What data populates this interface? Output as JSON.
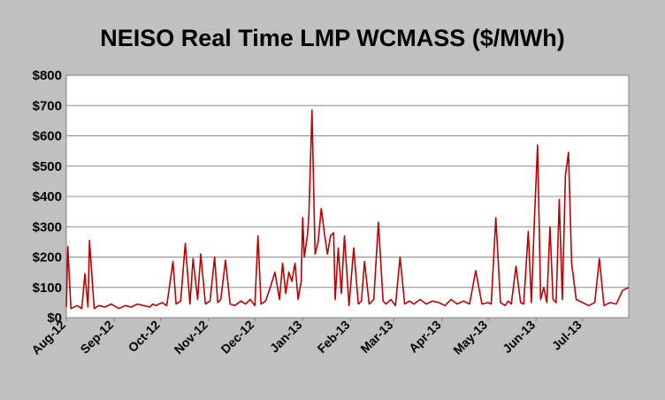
{
  "chart_data": {
    "type": "line",
    "title": "NEISO Real Time LMP WCMASS ($/MWh)",
    "xlabel": "",
    "ylabel": "",
    "ylim": [
      0,
      800
    ],
    "yticks": [
      0,
      100,
      200,
      300,
      400,
      500,
      600,
      700,
      800
    ],
    "ytick_labels": [
      "$0",
      "$100",
      "$200",
      "$300",
      "$400",
      "$500",
      "$600",
      "$700",
      "$800"
    ],
    "x_tick_labels": [
      "Aug-12",
      "Sep-12",
      "Oct-12",
      "Nov-12",
      "Dec-12",
      "Jan-13",
      "Feb-13",
      "Mar-13",
      "Apr-13",
      "May-13",
      "Jun-13",
      "Jul-13"
    ],
    "x_tick_dates": [
      "2012-08-01",
      "2012-09-01",
      "2012-10-01",
      "2012-11-01",
      "2012-12-01",
      "2013-01-01",
      "2013-02-01",
      "2013-03-01",
      "2013-04-01",
      "2013-05-01",
      "2013-06-01",
      "2013-07-01"
    ],
    "xlim": [
      "2012-08-01",
      "2013-07-31"
    ],
    "grid": "horizontal",
    "legend": "none",
    "line_color": "#c00000",
    "series": [
      {
        "x": [
          "2012-08-01",
          "2012-08-02",
          "2012-08-04",
          "2012-08-08",
          "2012-08-11",
          "2012-08-13",
          "2012-08-15",
          "2012-08-16",
          "2012-08-19",
          "2012-08-22",
          "2012-08-26",
          "2012-08-30",
          "2012-09-04",
          "2012-09-08",
          "2012-09-12",
          "2012-09-16",
          "2012-09-20",
          "2012-09-24",
          "2012-09-26",
          "2012-09-28",
          "2012-10-02",
          "2012-10-05",
          "2012-10-09",
          "2012-10-11",
          "2012-10-14",
          "2012-10-17",
          "2012-10-20",
          "2012-10-22",
          "2012-10-25",
          "2012-10-27",
          "2012-10-30",
          "2012-11-02",
          "2012-11-05",
          "2012-11-07",
          "2012-11-09",
          "2012-11-12",
          "2012-11-15",
          "2012-11-18",
          "2012-11-22",
          "2012-11-25",
          "2012-11-28",
          "2012-12-01",
          "2012-12-03",
          "2012-12-05",
          "2012-12-08",
          "2012-12-11",
          "2012-12-14",
          "2012-12-17",
          "2012-12-19",
          "2012-12-21",
          "2012-12-23",
          "2012-12-25",
          "2012-12-27",
          "2012-12-29",
          "2012-12-31",
          "2013-01-01",
          "2013-01-02",
          "2013-01-04",
          "2013-01-05",
          "2013-01-07",
          "2013-01-09",
          "2013-01-11",
          "2013-01-13",
          "2013-01-15",
          "2013-01-17",
          "2013-01-19",
          "2013-01-21",
          "2013-01-22",
          "2013-01-24",
          "2013-01-26",
          "2013-01-28",
          "2013-01-31",
          "2013-02-03",
          "2013-02-06",
          "2013-02-08",
          "2013-02-10",
          "2013-02-13",
          "2013-02-16",
          "2013-02-19",
          "2013-02-22",
          "2013-02-24",
          "2013-02-27",
          "2013-03-02",
          "2013-03-05",
          "2013-03-08",
          "2013-03-11",
          "2013-03-14",
          "2013-03-18",
          "2013-03-22",
          "2013-03-26",
          "2013-03-30",
          "2013-04-03",
          "2013-04-07",
          "2013-04-11",
          "2013-04-15",
          "2013-04-19",
          "2013-04-23",
          "2013-04-27",
          "2013-05-01",
          "2013-05-03",
          "2013-05-06",
          "2013-05-09",
          "2013-05-12",
          "2013-05-14",
          "2013-05-16",
          "2013-05-19",
          "2013-05-22",
          "2013-05-24",
          "2013-05-27",
          "2013-05-29",
          "2013-05-31",
          "2013-06-02",
          "2013-06-04",
          "2013-06-06",
          "2013-06-08",
          "2013-06-10",
          "2013-06-12",
          "2013-06-14",
          "2013-06-16",
          "2013-06-18",
          "2013-06-20",
          "2013-06-22",
          "2013-06-24",
          "2013-06-27",
          "2013-07-01",
          "2013-07-05",
          "2013-07-09",
          "2013-07-12",
          "2013-07-15",
          "2013-07-19",
          "2013-07-23",
          "2013-07-27",
          "2013-07-31"
        ],
        "values": [
          35,
          235,
          30,
          40,
          30,
          145,
          35,
          255,
          30,
          40,
          35,
          45,
          30,
          40,
          35,
          45,
          40,
          35,
          45,
          40,
          50,
          40,
          185,
          45,
          55,
          245,
          45,
          195,
          60,
          210,
          45,
          55,
          200,
          50,
          60,
          190,
          45,
          40,
          55,
          45,
          60,
          40,
          270,
          45,
          55,
          100,
          150,
          60,
          180,
          80,
          150,
          120,
          180,
          60,
          120,
          330,
          200,
          270,
          340,
          685,
          210,
          250,
          360,
          280,
          210,
          270,
          280,
          60,
          230,
          80,
          270,
          40,
          230,
          45,
          55,
          185,
          45,
          60,
          315,
          55,
          45,
          60,
          40,
          200,
          45,
          55,
          45,
          60,
          45,
          55,
          50,
          40,
          60,
          45,
          55,
          45,
          155,
          45,
          50,
          45,
          330,
          50,
          40,
          55,
          45,
          170,
          50,
          45,
          285,
          50,
          330,
          570,
          60,
          100,
          50,
          300,
          60,
          50,
          390,
          60,
          470,
          545,
          180,
          60,
          50,
          40,
          50,
          195,
          40,
          50,
          45,
          90,
          100
        ]
      }
    ]
  }
}
